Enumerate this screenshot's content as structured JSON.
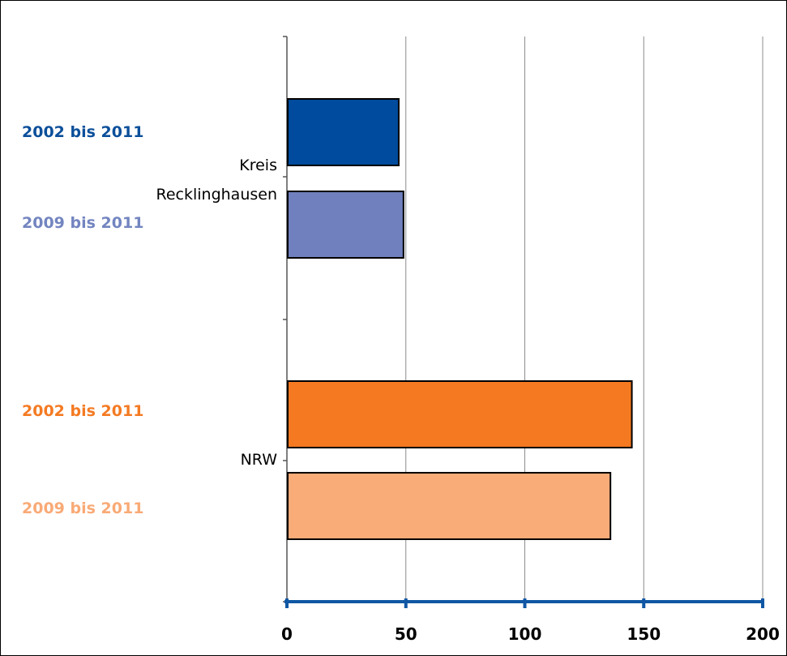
{
  "chart_data": {
    "type": "bar",
    "orientation": "horizontal",
    "xlim": [
      0,
      200
    ],
    "x_ticks": [
      "0",
      "50",
      "100",
      "150",
      "200"
    ],
    "grid": true,
    "groups": [
      {
        "category": "Kreis Recklinghausen",
        "category_lines": [
          "Kreis",
          "Recklinghausen"
        ],
        "bars": [
          {
            "label": "2002 bis 2011",
            "value": 47,
            "color": "#004B9D",
            "label_color": "#0B4F9A"
          },
          {
            "label": "2009 bis 2011",
            "value": 49,
            "color": "#7080BE",
            "label_color": "#7385C0"
          }
        ]
      },
      {
        "category": "NRW",
        "category_lines": [
          "NRW"
        ],
        "bars": [
          {
            "label": "2002 bis 2011",
            "value": 145,
            "color": "#F47920",
            "label_color": "#F47A22"
          },
          {
            "label": "2009 bis 2011",
            "value": 136,
            "color": "#F9AB78",
            "label_color": "#F9AA76"
          }
        ]
      }
    ],
    "axis_color": "#0F57A4"
  }
}
